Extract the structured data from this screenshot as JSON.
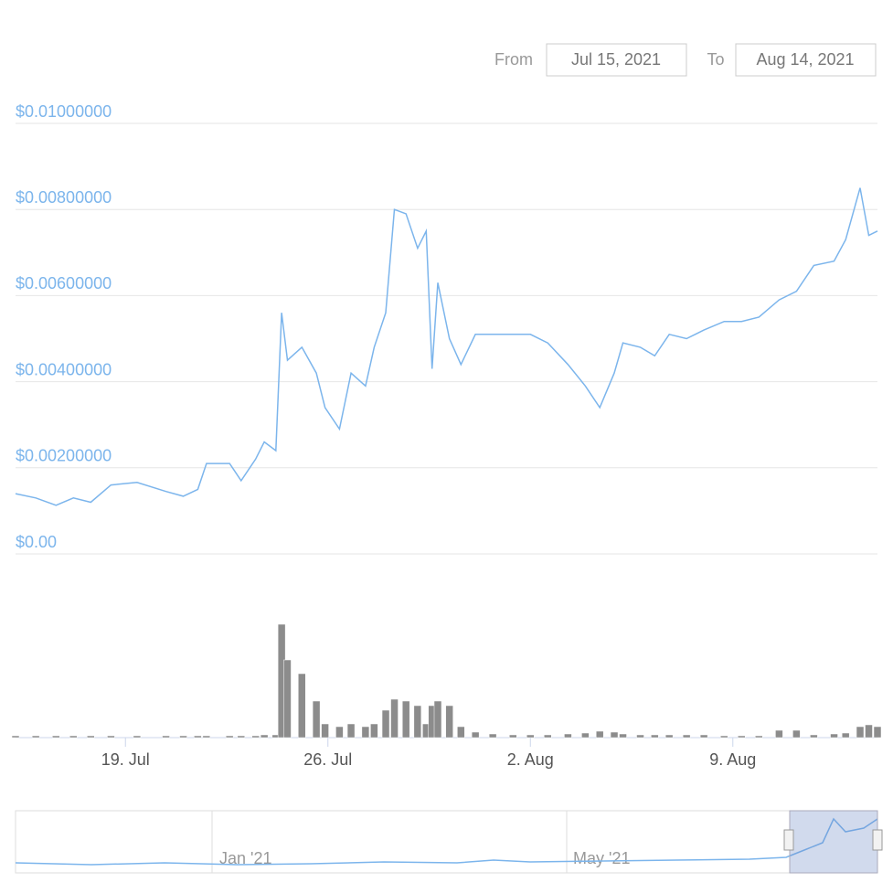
{
  "controls": {
    "from_label": "From",
    "from": "Jul 15, 2021",
    "to_label": "To",
    "to": "Aug 14, 2021"
  },
  "navigator": {
    "labels": [
      "Jan '21",
      "May '21"
    ]
  },
  "chart_data": {
    "type": "line",
    "color": "#7cb5ec",
    "x": [
      0.2,
      0.9,
      1.6,
      2.2,
      2.8,
      3.5,
      4.4,
      5.4,
      6.0,
      6.5,
      6.8,
      7.6,
      8.0,
      8.5,
      8.8,
      9.2,
      9.4,
      9.6,
      10.1,
      10.6,
      10.9,
      11.4,
      11.8,
      12.3,
      12.6,
      13.0,
      13.3,
      13.7,
      14.1,
      14.4,
      14.6,
      14.8,
      15.2,
      15.6,
      16.1,
      16.7,
      17.4,
      18.0,
      18.6,
      19.3,
      19.9,
      20.4,
      20.9,
      21.2,
      21.8,
      22.3,
      22.8,
      23.4,
      24.0,
      24.7,
      25.3,
      25.9,
      26.6,
      27.2,
      27.8,
      28.5,
      28.9,
      29.4,
      29.7,
      30.0
    ],
    "values": [
      0.0014,
      0.0013,
      0.00113,
      0.0013,
      0.0012,
      0.0016,
      0.00166,
      0.00145,
      0.00134,
      0.0015,
      0.0021,
      0.0021,
      0.0017,
      0.0022,
      0.0026,
      0.0024,
      0.0056,
      0.0045,
      0.0048,
      0.0042,
      0.0034,
      0.0029,
      0.0042,
      0.0039,
      0.0048,
      0.0056,
      0.008,
      0.0079,
      0.0071,
      0.0075,
      0.0043,
      0.0063,
      0.005,
      0.0044,
      0.0051,
      0.0051,
      0.0051,
      0.0051,
      0.0049,
      0.0044,
      0.0039,
      0.0034,
      0.0042,
      0.0049,
      0.0048,
      0.0046,
      0.0051,
      0.005,
      0.0052,
      0.0054,
      0.0054,
      0.0055,
      0.0059,
      0.0061,
      0.0067,
      0.0068,
      0.0073,
      0.0085,
      0.0074,
      0.0075
    ],
    "volume": {
      "color": "#8c8c8c",
      "values": [
        2,
        2,
        2,
        2,
        2,
        2,
        2,
        2,
        2,
        2,
        2,
        2,
        2,
        2,
        3,
        3,
        124,
        85,
        70,
        40,
        15,
        12,
        15,
        12,
        15,
        30,
        42,
        40,
        35,
        15,
        35,
        40,
        35,
        12,
        6,
        4,
        3,
        3,
        3,
        4,
        5,
        7,
        6,
        4,
        3,
        3,
        3,
        3,
        3,
        2,
        2,
        2,
        8,
        8,
        3,
        4,
        5,
        12,
        14,
        12
      ]
    },
    "xlim": [
      0.2,
      30
    ],
    "xticks": [
      {
        "value": 4,
        "label": "19. Jul"
      },
      {
        "value": 11,
        "label": "26. Jul"
      },
      {
        "value": 18,
        "label": "2. Aug"
      },
      {
        "value": 25,
        "label": "9. Aug"
      }
    ],
    "ylim": [
      0,
      0.01
    ],
    "yticks": [
      {
        "value": 0,
        "label": "$0.00"
      },
      {
        "value": 0.002,
        "label": "$0.00200000"
      },
      {
        "value": 0.004,
        "label": "$0.00400000"
      },
      {
        "value": 0.006,
        "label": "$0.00600000"
      },
      {
        "value": 0.008,
        "label": "$0.00800000"
      },
      {
        "value": 0.01,
        "label": "$0.01000000"
      }
    ],
    "grid": true
  }
}
